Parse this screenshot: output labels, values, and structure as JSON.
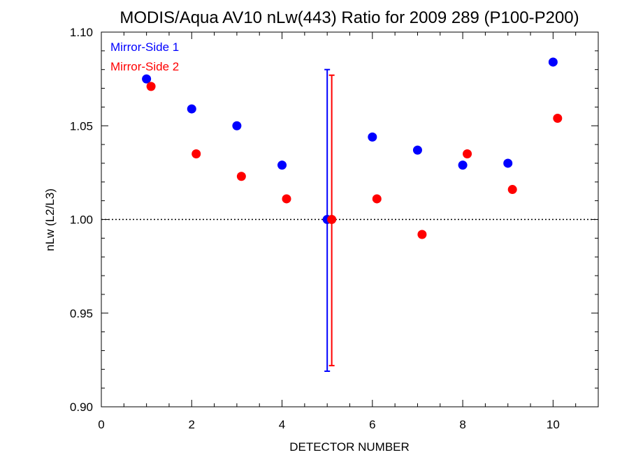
{
  "chart_data": {
    "type": "scatter",
    "title": "MODIS/Aqua AV10 nLw(443) Ratio for 2009 289 (P100-P200)",
    "xlabel": "DETECTOR NUMBER",
    "ylabel": "nLw (L2/L3)",
    "xlim": [
      0,
      11
    ],
    "ylim": [
      0.9,
      1.1
    ],
    "x_ticks": [
      "0",
      "2",
      "4",
      "6",
      "8",
      "10"
    ],
    "y_ticks": [
      "0.90",
      "0.95",
      "1.00",
      "1.05",
      "1.10"
    ],
    "reference_line": {
      "y": 1.0,
      "style": "dotted"
    },
    "legend_position": "top-left",
    "series": [
      {
        "name": "Mirror-Side 1",
        "color": "#0000ff",
        "x": [
          1,
          2,
          3,
          4,
          5,
          6,
          7,
          8,
          9,
          10
        ],
        "y": [
          1.075,
          1.059,
          1.05,
          1.029,
          1.0,
          1.044,
          1.037,
          1.029,
          1.03,
          1.084
        ],
        "error_bar": {
          "x": 5,
          "low": 0.919,
          "high": 1.08
        }
      },
      {
        "name": "Mirror-Side 2",
        "color": "#ff0000",
        "x": [
          1.1,
          2.1,
          3.1,
          4.1,
          5.1,
          6.1,
          7.1,
          8.1,
          9.1,
          10.1
        ],
        "y": [
          1.071,
          1.035,
          1.023,
          1.011,
          1.0,
          1.011,
          0.992,
          1.035,
          1.016,
          1.054
        ],
        "error_bar": {
          "x": 5.1,
          "low": 0.922,
          "high": 1.077
        }
      }
    ]
  }
}
